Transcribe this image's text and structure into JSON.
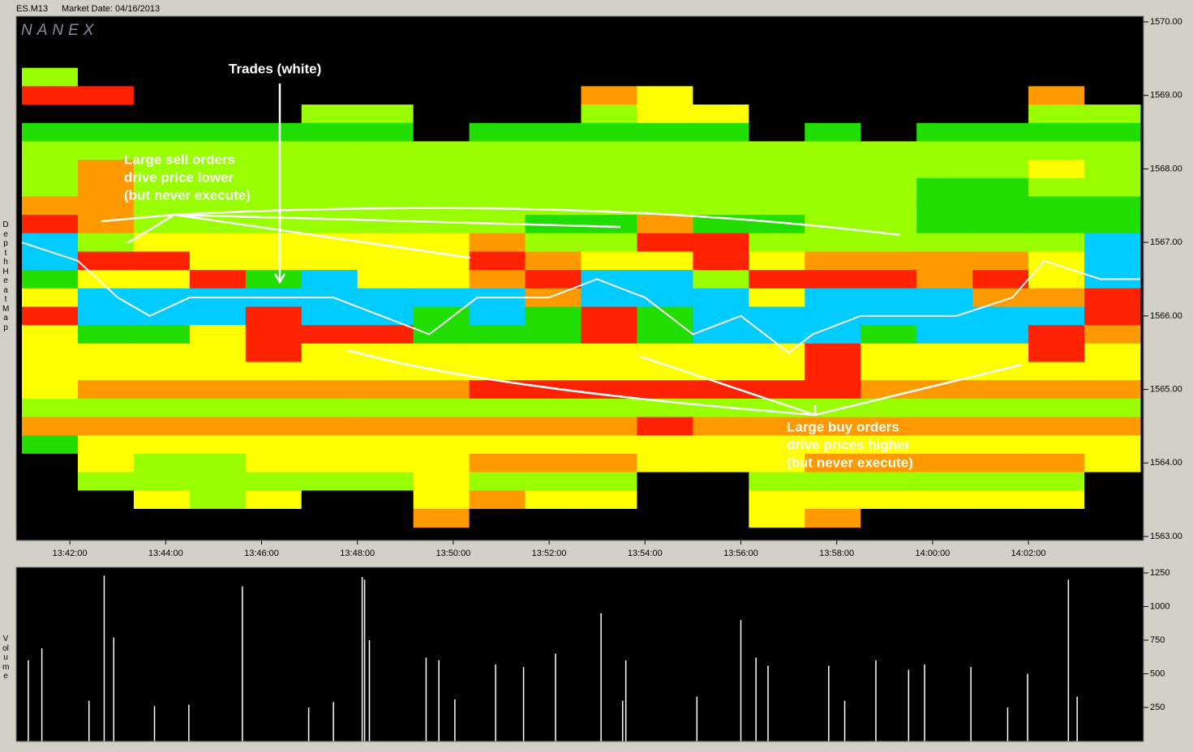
{
  "header": {
    "symbol": "ES.M13",
    "market_date": "Market Date: 04/16/2013",
    "logo": "NANEX"
  },
  "chart_data": [
    {
      "type": "heatmap",
      "ylabel": "Depth Heat Map",
      "xlim": [
        "13:41:00",
        "14:04:20"
      ],
      "xticks": [
        "13:42:00",
        "13:44:00",
        "13:46:00",
        "13:48:00",
        "13:50:00",
        "13:52:00",
        "13:54:00",
        "13:56:00",
        "13:58:00",
        "14:00:00",
        "14:02:00"
      ],
      "ylim": [
        1563,
        1570
      ],
      "yticks": [
        {
          "value": 1570,
          "label": "1570.00"
        },
        {
          "value": 1569,
          "label": "1569.00"
        },
        {
          "value": 1568,
          "label": "1568.00"
        },
        {
          "value": 1567,
          "label": "1567.00"
        },
        {
          "value": 1566,
          "label": "1566.00"
        },
        {
          "value": 1565,
          "label": "1565.00"
        },
        {
          "value": 1564,
          "label": "1564.00"
        },
        {
          "value": 1563,
          "label": "1563.00"
        }
      ],
      "columns": [
        "13:41:00",
        "13:42:10",
        "13:43:20",
        "13:44:30",
        "13:45:40",
        "13:46:50",
        "13:48:00",
        "13:49:10",
        "13:50:20",
        "13:51:30",
        "13:52:40",
        "13:53:50",
        "13:55:00",
        "13:56:10",
        "13:57:20",
        "13:58:30",
        "13:59:40",
        "14:00:50",
        "14:02:00",
        "14:03:10"
      ],
      "prices": [
        1569.25,
        1569,
        1568.75,
        1568.5,
        1568.25,
        1568,
        1567.75,
        1567.5,
        1567.25,
        1567,
        1566.75,
        1566.5,
        1566.25,
        1566,
        1565.75,
        1565.5,
        1565.25,
        1565,
        1564.75,
        1564.5,
        1564.25,
        1564,
        1563.75,
        1563.5,
        1563.25
      ],
      "colors": [
        "#000000",
        "#22dd00",
        "#99ff00",
        "#ffff00",
        "#ff9900",
        "#ff2200",
        "#00ccff"
      ],
      "z": [
        [
          2,
          0,
          0,
          0,
          0,
          0,
          0,
          0,
          0,
          0,
          0,
          0,
          0,
          0,
          0,
          0,
          0,
          0,
          0,
          0
        ],
        [
          5,
          5,
          0,
          0,
          0,
          0,
          0,
          0,
          0,
          0,
          4,
          3,
          0,
          0,
          0,
          0,
          0,
          0,
          4,
          0
        ],
        [
          0,
          0,
          0,
          0,
          0,
          2,
          2,
          0,
          0,
          0,
          2,
          3,
          3,
          0,
          0,
          0,
          0,
          0,
          2,
          2
        ],
        [
          1,
          1,
          1,
          1,
          1,
          1,
          1,
          0,
          1,
          1,
          1,
          1,
          1,
          0,
          1,
          0,
          1,
          1,
          1,
          1
        ],
        [
          2,
          2,
          2,
          2,
          2,
          2,
          2,
          2,
          2,
          2,
          2,
          2,
          2,
          2,
          2,
          2,
          2,
          2,
          2,
          2
        ],
        [
          2,
          4,
          2,
          2,
          2,
          2,
          2,
          2,
          2,
          2,
          2,
          2,
          2,
          2,
          2,
          2,
          2,
          2,
          3,
          2
        ],
        [
          2,
          4,
          2,
          2,
          2,
          2,
          2,
          2,
          2,
          2,
          2,
          2,
          2,
          2,
          2,
          2,
          1,
          1,
          2,
          2
        ],
        [
          4,
          4,
          2,
          2,
          2,
          2,
          2,
          2,
          2,
          2,
          2,
          2,
          2,
          2,
          2,
          2,
          1,
          1,
          1,
          1
        ],
        [
          5,
          4,
          2,
          2,
          2,
          2,
          2,
          2,
          2,
          1,
          1,
          4,
          1,
          1,
          2,
          2,
          1,
          1,
          1,
          1
        ],
        [
          6,
          2,
          3,
          3,
          3,
          3,
          3,
          3,
          4,
          2,
          2,
          5,
          5,
          2,
          2,
          2,
          2,
          2,
          2,
          6
        ],
        [
          6,
          5,
          5,
          3,
          3,
          3,
          3,
          3,
          5,
          4,
          3,
          3,
          5,
          3,
          4,
          4,
          4,
          4,
          3,
          6
        ],
        [
          1,
          3,
          3,
          5,
          1,
          6,
          3,
          3,
          4,
          5,
          6,
          6,
          2,
          5,
          5,
          5,
          4,
          5,
          3,
          6
        ],
        [
          3,
          6,
          6,
          6,
          6,
          6,
          6,
          6,
          6,
          4,
          6,
          6,
          6,
          3,
          6,
          6,
          6,
          4,
          4,
          5
        ],
        [
          5,
          6,
          6,
          6,
          5,
          6,
          6,
          1,
          6,
          1,
          5,
          1,
          6,
          6,
          6,
          6,
          6,
          6,
          6,
          5
        ],
        [
          3,
          1,
          1,
          3,
          5,
          5,
          5,
          1,
          1,
          1,
          5,
          1,
          6,
          6,
          6,
          1,
          6,
          6,
          5,
          4
        ],
        [
          3,
          3,
          3,
          3,
          5,
          3,
          3,
          3,
          3,
          3,
          3,
          3,
          3,
          3,
          5,
          3,
          3,
          3,
          5,
          3
        ],
        [
          3,
          3,
          3,
          3,
          3,
          3,
          3,
          3,
          3,
          3,
          3,
          3,
          3,
          3,
          5,
          3,
          3,
          3,
          3,
          3
        ],
        [
          3,
          4,
          4,
          4,
          4,
          4,
          4,
          4,
          5,
          5,
          5,
          5,
          5,
          5,
          5,
          4,
          4,
          4,
          4,
          4
        ],
        [
          2,
          2,
          2,
          2,
          2,
          2,
          2,
          2,
          2,
          2,
          2,
          2,
          2,
          2,
          2,
          2,
          2,
          2,
          2,
          2
        ],
        [
          4,
          4,
          4,
          4,
          4,
          4,
          4,
          4,
          4,
          4,
          4,
          5,
          4,
          4,
          4,
          4,
          4,
          4,
          4,
          4
        ],
        [
          1,
          3,
          3,
          3,
          3,
          3,
          3,
          3,
          3,
          3,
          3,
          3,
          3,
          3,
          3,
          3,
          3,
          3,
          3,
          3
        ],
        [
          0,
          3,
          2,
          2,
          3,
          3,
          3,
          3,
          4,
          4,
          4,
          3,
          3,
          3,
          4,
          4,
          4,
          4,
          4,
          3
        ],
        [
          0,
          2,
          2,
          2,
          2,
          2,
          2,
          3,
          2,
          2,
          2,
          0,
          0,
          2,
          2,
          2,
          2,
          2,
          2,
          0
        ],
        [
          0,
          0,
          3,
          2,
          3,
          0,
          0,
          3,
          4,
          3,
          3,
          0,
          0,
          3,
          3,
          3,
          3,
          3,
          3,
          0
        ],
        [
          0,
          0,
          0,
          0,
          0,
          0,
          0,
          4,
          0,
          0,
          0,
          0,
          0,
          3,
          4,
          0,
          0,
          0,
          0,
          0
        ]
      ],
      "trades": {
        "color": "#ffffff",
        "x": [
          "13:41:00",
          "13:42:10",
          "13:43:00",
          "13:43:40",
          "13:44:30",
          "13:46:00",
          "13:47:30",
          "13:48:30",
          "13:49:30",
          "13:50:30",
          "13:52:00",
          "13:53:00",
          "13:54:00",
          "13:55:00",
          "13:56:00",
          "13:57:00",
          "13:57:30",
          "13:58:30",
          "13:59:30",
          "14:00:30",
          "14:01:40",
          "14:02:20",
          "14:03:30",
          "14:04:20"
        ],
        "y": [
          1567,
          1566.75,
          1566.25,
          1566,
          1566.25,
          1566.25,
          1566.25,
          1566,
          1565.75,
          1566.25,
          1566.25,
          1566.5,
          1566.25,
          1565.75,
          1566,
          1565.5,
          1565.75,
          1566,
          1566,
          1566,
          1566.25,
          1566.75,
          1566.5,
          1566.5
        ]
      },
      "annotations": [
        {
          "lines": [
            "Trades (white)"
          ]
        },
        {
          "lines": [
            "Large sell orders",
            "drive price lower",
            "(but never execute)"
          ]
        },
        {
          "lines": [
            "Large buy orders",
            "drive prices higher",
            "(but never execute)"
          ]
        }
      ]
    },
    {
      "type": "bar",
      "ylabel": "Volume",
      "color": "#ffffff",
      "xlim": [
        "13:41:00",
        "14:04:20"
      ],
      "ylim": [
        0,
        1250
      ],
      "yticks": [
        250,
        500,
        750,
        1000,
        1250
      ],
      "x": [
        "13:41:08",
        "13:41:25",
        "13:42:24",
        "13:42:43",
        "13:42:55",
        "13:43:46",
        "13:44:29",
        "13:45:36",
        "13:46:59",
        "13:47:30",
        "13:48:06",
        "13:48:09",
        "13:48:15",
        "13:49:26",
        "13:49:42",
        "13:50:02",
        "13:50:53",
        "13:51:28",
        "13:52:08",
        "13:53:05",
        "13:53:32",
        "13:53:36",
        "13:55:05",
        "13:56:00",
        "13:56:19",
        "13:56:34",
        "13:57:50",
        "13:58:10",
        "13:58:49",
        "13:59:30",
        "13:59:50",
        "14:00:48",
        "14:01:34",
        "14:01:59",
        "14:02:50",
        "14:03:01"
      ],
      "values": [
        600,
        690,
        300,
        1230,
        770,
        260,
        270,
        1150,
        250,
        290,
        1220,
        1200,
        750,
        620,
        600,
        310,
        570,
        550,
        650,
        950,
        300,
        600,
        330,
        900,
        620,
        560,
        560,
        300,
        600,
        530,
        570,
        550,
        250,
        500,
        1200,
        330
      ]
    }
  ]
}
